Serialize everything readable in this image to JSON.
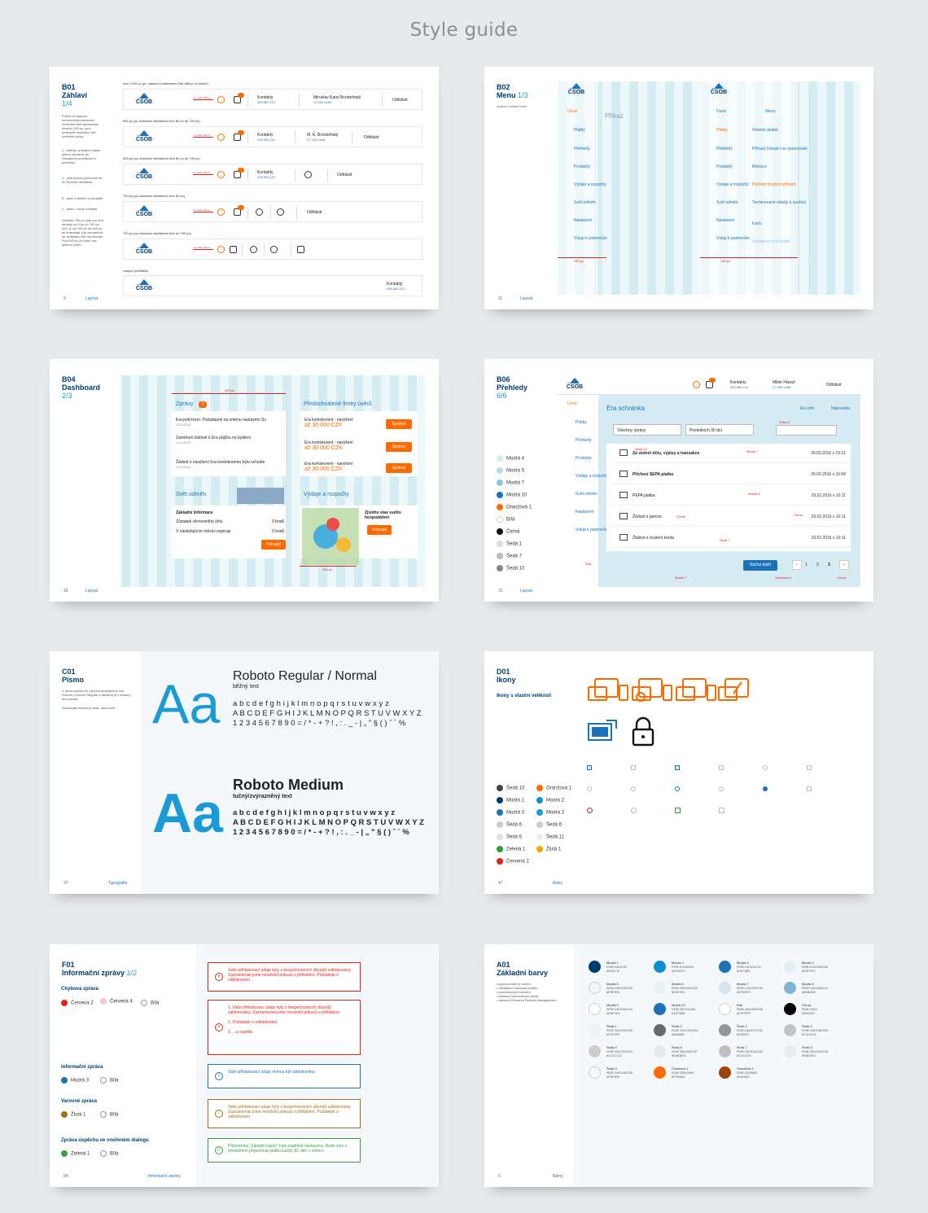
{
  "title": "Style guide",
  "b01": {
    "code": "B01",
    "name": "Záhlaví",
    "num": "1/4",
    "page": "9",
    "section": "Layout",
    "intro": "Pokud šíř layoutu neumožňuje zobrazení minimální šíře dynamické mezery 150 px, jsou postupně skrývány níže uvedené prvky:",
    "notes": [
      "1 - aktivity, případné kladní jméno uživatele (je nahrazeno počátečními písmeny)",
      "2 - celé jméno (přesouvá se do Rynoků uživatele)",
      "3 - label a telefon u kontaktů",
      "4 - label u ikony odhlásit",
      "Varianta 700 px platí pro šíře stránky od 0 px do 700 px šíře, tj. od 700 px do 640 px se zmenšuje a je zobrazena ve vertikálnu bez scrollování. Pod 640 px již hraní bez dalších změn."
    ],
    "rows": [
      {
        "label": "max 1100 px (po odsazení sidebarem šíře 868 px a vlastní)",
        "px": "to maže 150 px",
        "contacts": "Kontakty",
        "phone": "495 800 121",
        "user": "Miroslav Karel Brzobohatý",
        "points": "27 450 bodů",
        "logout": "Odhlásit"
      },
      {
        "label": "960 px (po odsazení sidebarem šíře 80 px do 760 px)",
        "px": "to maže 150 px",
        "contacts": "Kontakty",
        "phone": "495 800 121",
        "user": "M. K. Brzobohatý",
        "points": "27 450 bodů",
        "logout": "Odhlásit"
      },
      {
        "label": "800 px (po odsazení sidebarem šíře 80 px do 700 px)",
        "px": "to maže 150 px",
        "contacts": "Kontakty",
        "phone": "495 800 121",
        "user": "",
        "points": "",
        "logout": "Odhlásit"
      },
      {
        "label": "760 px (po odsazení sidebarem šíře 80 px)",
        "px": "to maže 150 px",
        "contacts": "",
        "phone": "",
        "user": "",
        "points": "",
        "logout": "Odhlásit"
      },
      {
        "label": "700 px (po odsazení sidebarem šíře do 700 px)",
        "px": "to maže 150 px",
        "contacts": "",
        "phone": "",
        "user": "",
        "points": "",
        "logout": ""
      },
      {
        "label": "vstupní přihlášení",
        "px": "",
        "contacts": "Kontakty",
        "phone": "495 800 121",
        "user": "",
        "points": "",
        "logout": ""
      }
    ],
    "logo": "ČSOB"
  },
  "b02": {
    "code": "B02",
    "name": "Menu",
    "num": "1/3",
    "page": "11",
    "section": "Layout",
    "intro": "výchozí vzhled menu",
    "logo": "ČSOB",
    "placeholder": "Příkaz",
    "menu": [
      "Úvod",
      "Platby",
      "Přehledy",
      "Produkty",
      "Výdaje a rozpočty",
      "Svět odměn",
      "Nastavení",
      "Vstup k partnerům"
    ],
    "submenu_head": "Menu",
    "submenu": [
      "Historie plateb",
      "Příkazy čekající na zpracování",
      "Blokace",
      "Přehled trvalých příkazů",
      "Terminované vklady a spoření",
      "Karty",
      "Kontaktní vyúčtování"
    ],
    "dims": [
      "140 px",
      "160 px",
      "180 px",
      "80 px",
      "14 px",
      "15 px",
      "20 px",
      "10 px"
    ]
  },
  "b04": {
    "code": "B04",
    "name": "Dashboard",
    "num": "2/3",
    "page": "18",
    "section": "Layout",
    "messages_title": "Zprávy",
    "messages_badge": "3",
    "limits_title": "Předschválené limity úvěrů",
    "messages": [
      {
        "t": "Era potvrzení: Požadavek na změnu nastavení Sv",
        "d": "10.3.2016"
      },
      {
        "t": "Zamítnutí žádosti o Era půjčku na bydlení",
        "d": "10.2.2016"
      },
      {
        "t": "Žádost o navýšení Era kontokorentu byla schvále",
        "d": "10.2.2016"
      }
    ],
    "limits": [
      {
        "t": "Era kontokorent - navýšení",
        "v": "až 30 000 CZK",
        "b": "Sjednat"
      },
      {
        "t": "Era kontokorent - navýšení",
        "v": "až 30 000 CZK",
        "b": "Sjednat"
      },
      {
        "t": "Era kontokorent - navýšení",
        "v": "až 30 000 CZK",
        "b": "Sjednat"
      }
    ],
    "rewards_title": "Svět odměn",
    "rewards_head": "Základní informace",
    "rewards": [
      {
        "t": "Zůstatek věrnostního účtu",
        "v": "0 bodů"
      },
      {
        "t": "V následujícím měsíci expiruje",
        "v": "0 bodů"
      }
    ],
    "rewards_btn": "Vstoupit",
    "spend_title": "Výdaje a rozpočty",
    "spend_text": "Zjistěte stav svého hospodaření",
    "spend_btn": "Vstoupit",
    "dims": [
      "400 px",
      "200 px",
      "220 px",
      "80 px",
      "60 px",
      "40 px",
      "10 px",
      "20 px"
    ]
  },
  "b06": {
    "code": "B06",
    "name": "Přehledy",
    "num": "6/6",
    "page": "31",
    "section": "Layout",
    "logo": "ČSOB",
    "legend": [
      "Modrá 4",
      "Modrá 5",
      "Modrá 7",
      "Modrá 10",
      "Oranžová 1",
      "Bílá",
      "Černá",
      "Šedá 1",
      "Šedá 7",
      "Šedá 10"
    ],
    "legend_colors": [
      "#d6ecf5",
      "#b9dcec",
      "#8fc6e0",
      "#1a73b8",
      "#ff6a00",
      "#ffffff",
      "#111111",
      "#dddddd",
      "#bbbbbb",
      "#888888"
    ],
    "contacts": "Kontakty",
    "phone": "495 800 121",
    "user": "Milan Hanuš",
    "points": "27 450 bodů",
    "logout": "Odhlásit",
    "menu": [
      "Úvod",
      "Platby",
      "Přehledy",
      "Produkty",
      "Výdaje a rozpočty",
      "Svět odměn",
      "Nastavení",
      "Vstup k partnerům"
    ],
    "heading": "Era schránka",
    "info": "Era info",
    "help": "Nápověda",
    "filter1": "Všechny zprávy",
    "filter2": "Posledních 30 dní",
    "rows": [
      {
        "t": "Za vedení účtu, výpisy a transakce",
        "d": "26.03.2016 v 19:31"
      },
      {
        "t": "Příchozí SEPA platba",
        "d": "26.03.2016 v 16:58"
      },
      {
        "t": "PEPA platba",
        "d": "29.02.2016 v 10:11"
      },
      {
        "t": "Žádost o peníze",
        "d": "29.02.2016 v 10:11"
      },
      {
        "t": "Žádost o zrušení konta",
        "d": "29.02.2016 v 10:11"
      }
    ],
    "more": "Načíst další",
    "pages": [
      "1",
      "2",
      "3"
    ],
    "notes": [
      "Šedá 6",
      "Modrá 7",
      "Šedá 10",
      "Modrá 5",
      "Černá",
      "Černá",
      "Šedá 7",
      "Bílá",
      "Modrá 7",
      "Oranžová 1",
      "Černá"
    ]
  },
  "c01": {
    "code": "C01",
    "name": "Písmo",
    "page": "37",
    "section": "Typografie",
    "intro": "V rámci portálu se využívá bezpatkový font Roboto v řezech Regular a Medium pro veškerý text portálu.",
    "intro2": "Zobrazujte fontem je Arial, sans-serif.",
    "f1": "Roboto Regular / Normal",
    "f1s": "běžný text",
    "f2": "Roboto Medium",
    "f2s": "tučný/zvýrazněný text",
    "aa": "Aa",
    "lower": "a b c d e f g h i j k l m n o p q r s t u v w x y z",
    "upper": "A B C D E F G H I J K L M N O P Q R S T U V W X Y Z",
    "digits": "1 2 3 4 5 6 7 8 9 0 = / * - + ? ! , : . _ - | „ \" § ( ) ˇ ´ %"
  },
  "d01": {
    "code": "D01",
    "name": "Ikony",
    "page": "47",
    "section": "Ikony",
    "subtitle": "Ikony s vlastní velikostí",
    "swatches_left": [
      "Šedá 10",
      "Modrá 1",
      "Modrá 3",
      "Šedá 6",
      "Šedá 6",
      "Zelená 1",
      "Červená 2"
    ],
    "swatches_left_colors": [
      "#444444",
      "#003c70",
      "#1a73b8",
      "#cccccc",
      "#e0e0e0",
      "#2e9e3e",
      "#e2231a"
    ],
    "swatches_right": [
      "Oranžová 1",
      "Modrá 2",
      "Modrá 3",
      "Šedá 6",
      "Šedá 11",
      "Žlutá 1"
    ],
    "swatches_right_colors": [
      "#ff6a00",
      "#0e8fd0",
      "#1a9bd7",
      "#cccccc",
      "#eeeeee",
      "#f5a800"
    ]
  },
  "f01": {
    "code": "F01",
    "name": "Informační zprávy",
    "num": "1/2",
    "page": "54",
    "section": "Informační zprávy",
    "groups": [
      {
        "title": "Chybová zpráva",
        "items": [
          "Červená 2",
          "Červená 4",
          "Bílá"
        ],
        "colors": [
          "#e2231a",
          "#f7c9c7",
          "#ffffff"
        ]
      },
      {
        "title": "Informační zpráva",
        "items": [
          "Modrá 3",
          "Bílá"
        ],
        "colors": [
          "#1a73b8",
          "#ffffff"
        ]
      },
      {
        "title": "Varovné zpráva",
        "items": [
          "Žlutá 1",
          "Bílá"
        ],
        "colors": [
          "#a0701a",
          "#ffffff"
        ]
      },
      {
        "title": "Zpráva úspěchu ve vnořeném dialogu",
        "items": [
          "Zelená 1",
          "Bílá"
        ],
        "colors": [
          "#3ca040",
          "#ffffff"
        ]
      }
    ],
    "m1": "Vaše přihlašovací údaje byly z bezpečnostních důvodů zablokovány. Zaznamenali jsme množství pokusů o přihlášení. Požádejte o odblokování.",
    "m2a": "1.  Vaše přihlašovací údaje byly z bezpečnostních důvodů zablokovány. Zaznamenali jsme množství pokusů o přihlášení.",
    "m2b": "2.  Požádejte o odblokování.",
    "m2c": "3.  ...a vsadíte.",
    "m3": "Vaše přihlašovací údaje mohou být zablokovány.",
    "m4": "Vaše přihlašovací údaje byly z bezpečnostních důvodů zablokovány. Zaznamenali jsme množství pokusů o přihlášení. Požádejte o odblokování.",
    "m5": "Připomínka \"Zaplatit nájem\" byla úspěšně nastavena. Bude vám s předstihem připomínat platbu každý 30. den v měsíci."
  },
  "a01": {
    "code": "A01",
    "name": "Základní barvy",
    "page": "5",
    "section": "Barvy",
    "intro": [
      "Layout portálu je tvořen:",
      "• základními barvami portálu,",
      "• produktovými barvami,",
      "• barvami informačních zpráv,",
      "• barvami Personal Finance Management."
    ],
    "colors": [
      [
        {
          "n": "Modrá 1",
          "v": "RGB 0/50/102",
          "h": "#003C70",
          "c": "#003c70"
        },
        {
          "n": "Modrá 2",
          "v": "RGB 0/153/204",
          "h": "#0099CC",
          "c": "#0e8fd0"
        },
        {
          "n": "Modrá 3",
          "v": "RGB 13/115/178",
          "h": "#0D73B2",
          "c": "#1a73b8"
        },
        {
          "n": "Modrá 4",
          "v": "RGB 224/240/245",
          "h": "#E0F0F5",
          "c": "#e0f0f5"
        }
      ],
      [
        {
          "n": "Modrá 5",
          "v": "RGB 248/249/250",
          "h": "#F8F9FA",
          "c": "#f4f7f9"
        },
        {
          "n": "Modrá 6",
          "v": "RGB 230/240/224",
          "h": "#E6F0E0",
          "c": "#e6f0f7"
        },
        {
          "n": "Modrá 7",
          "v": "RGB 215/229/240",
          "h": "#D7E5F0",
          "c": "#d7e5f0"
        },
        {
          "n": "Modrá 8",
          "v": "RGB 128/180/214",
          "h": "#80B4D6",
          "c": "#80b4d6"
        }
      ],
      [
        {
          "n": "Modrá 9",
          "v": "RGB 230/240/244",
          "h": "#E6F0F4",
          "c": "#ffffff"
        },
        {
          "n": "Modrá 10",
          "v": "RGB 26/115/184",
          "h": "#1A73B8",
          "c": "#1a73b8"
        },
        {
          "n": "Bílá",
          "v": "RGB 255/255/255",
          "h": "#FFFFFF",
          "c": "#ffffff"
        },
        {
          "n": "Černá",
          "v": "RGB 0/0/0",
          "h": "#000000",
          "c": "#000000"
        }
      ],
      [
        {
          "n": "Šedá 1",
          "v": "RGB 240/240/240",
          "h": "#F0F0F0",
          "c": "#f0f0f0"
        },
        {
          "n": "Šedá 2",
          "v": "RGB 104/104/104",
          "h": "#686868",
          "c": "#686868"
        },
        {
          "n": "Šedá 3",
          "v": "RGB 148/147/151",
          "h": "#949397",
          "c": "#949397"
        },
        {
          "n": "Šedá 4",
          "v": "RGB 196/196/200",
          "h": "#C4C4C8",
          "c": "#c4c4c8"
        }
      ],
      [
        {
          "n": "Šedá 5",
          "v": "RGB 204/204/204",
          "h": "#CCCCCC",
          "c": "#cccccc"
        },
        {
          "n": "Šedá 6",
          "v": "RGB 230/232/237",
          "h": "#E6E8ED",
          "c": "#e6e8ed"
        },
        {
          "n": "Šedá 7",
          "v": "RGB 192/192/192",
          "h": "#C0C0C0",
          "c": "#c0c0c0"
        },
        {
          "n": "Šedá 8",
          "v": "RGB 230/234/243",
          "h": "#E6EAF3",
          "c": "#e6eaf3"
        }
      ],
      [
        {
          "n": "Šedá 9",
          "v": "RGB 246/248/250",
          "h": "#F6F8FA",
          "c": "#f6f8fa"
        },
        {
          "n": "Oranžová 1",
          "v": "RGB 255/106/0",
          "h": "#FF6A00",
          "c": "#ff6a00"
        },
        {
          "n": "Oranžová 2",
          "v": "RGB 153/68/0",
          "h": "#994400",
          "c": "#994400"
        }
      ]
    ]
  }
}
